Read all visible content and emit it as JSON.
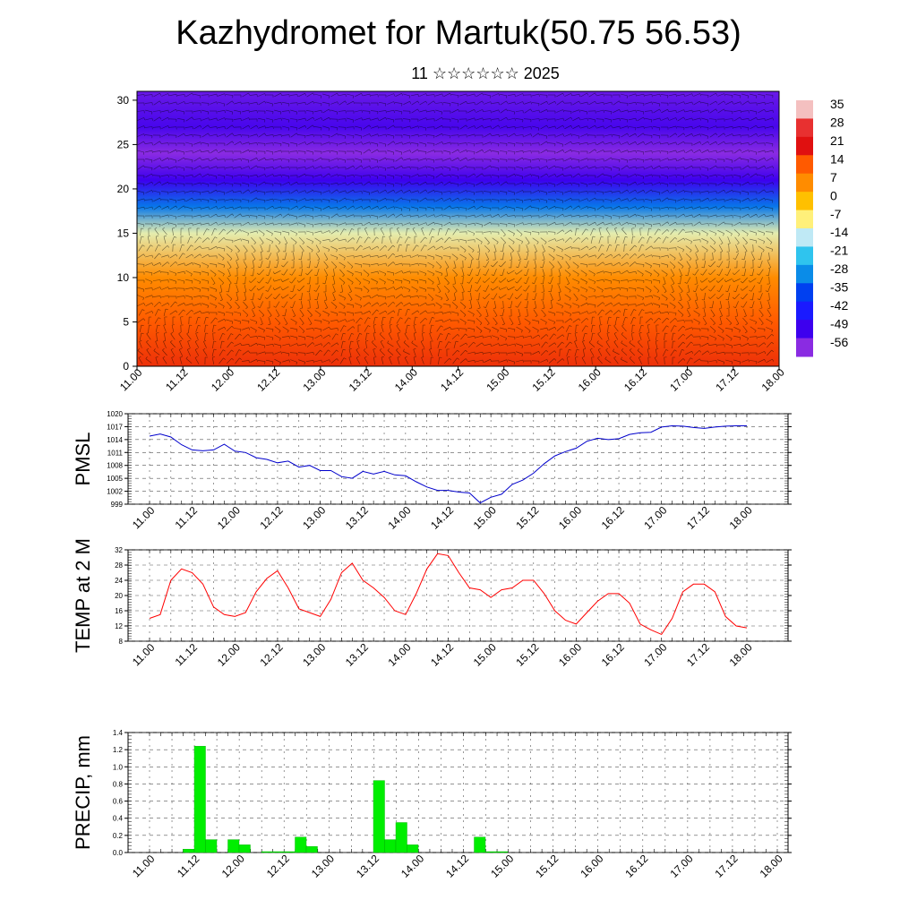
{
  "title": "Kazhydromet for Martuk(50.75 56.53)",
  "subtitle": "11 ☆☆☆☆☆☆ 2025",
  "time_labels": [
    "11.00",
    "11.12",
    "12.00",
    "12.12",
    "13.00",
    "13.12",
    "14.00",
    "14.12",
    "15.00",
    "15.12",
    "16.00",
    "16.12",
    "17.00",
    "17.12",
    "18.00"
  ],
  "colors": {
    "pmsl": "#0000cc",
    "temp": "#ff0000",
    "precip": "#00ee00"
  },
  "chart_data": [
    {
      "type": "heatmap",
      "title": "",
      "ylim": [
        0,
        31
      ],
      "yticks": [
        0,
        5,
        10,
        15,
        20,
        25,
        30
      ],
      "colorbar": {
        "labels": [
          35,
          28,
          21,
          14,
          7,
          0,
          -7,
          -14,
          -21,
          -28,
          -35,
          -42,
          -49,
          -56
        ],
        "colors": [
          "#f4c0c0",
          "#e83030",
          "#e01010",
          "#ff5a00",
          "#ff8c00",
          "#ffc000",
          "#fff07a",
          "#bfe9f5",
          "#2fc4ee",
          "#0a8ce8",
          "#0040f0",
          "#1a1aff",
          "#3d00ee",
          "#8a2be2"
        ]
      },
      "temperature_by_height": [
        {
          "height": 0,
          "temp": 18
        },
        {
          "height": 5,
          "temp": 14
        },
        {
          "height": 10,
          "temp": 7
        },
        {
          "height": 15,
          "temp": -10
        },
        {
          "height": 18,
          "temp": -30
        },
        {
          "height": 21,
          "temp": -49
        },
        {
          "height": 24,
          "temp": -58
        },
        {
          "height": 27,
          "temp": -50
        },
        {
          "height": 31,
          "temp": -53
        }
      ]
    },
    {
      "type": "line",
      "ylabel": "PMSL",
      "ylim": [
        999,
        1020
      ],
      "yticks": [
        999,
        1002,
        1005,
        1008,
        1011,
        1014,
        1017,
        1020
      ],
      "series": [
        {
          "values": [
            1014.8,
            1015.3,
            1014.6,
            1012.8,
            1011.6,
            1011.4,
            1011.6,
            1012.9,
            1011.3,
            1011.0,
            1009.8,
            1009.4,
            1008.6,
            1009.0,
            1007.6,
            1008.0,
            1006.8,
            1006.8,
            1005.4,
            1005.0,
            1006.6,
            1006.0,
            1006.6,
            1005.8,
            1005.6,
            1004.2,
            1003.0,
            1002.2,
            1002.2,
            1001.8,
            1001.6,
            999.3,
            1000.6,
            1001.3,
            1003.6,
            1004.6,
            1006.2,
            1008.4,
            1010.2,
            1011.2,
            1012.0,
            1013.6,
            1014.3,
            1014.0,
            1014.2,
            1015.2,
            1015.6,
            1015.7,
            1016.9,
            1017.2,
            1017.1,
            1016.8,
            1016.6,
            1016.9,
            1017.1,
            1017.2,
            1017.2
          ]
        }
      ]
    },
    {
      "type": "line",
      "ylabel": "TEMP at 2 M",
      "ylim": [
        8,
        32
      ],
      "yticks": [
        8,
        12,
        16,
        20,
        24,
        28,
        32
      ],
      "series": [
        {
          "values": [
            14,
            15,
            24,
            27,
            26,
            23,
            17,
            15,
            14.5,
            15.5,
            21,
            24.5,
            26.5,
            22,
            16.5,
            15.5,
            14.5,
            19,
            26,
            28.5,
            24,
            22,
            19.5,
            16,
            15,
            20.5,
            27,
            31,
            30.5,
            26,
            22,
            21.5,
            19.5,
            21.5,
            22,
            24,
            24,
            20.5,
            16,
            13.5,
            12.5,
            15.5,
            18.5,
            20.5,
            20.5,
            18,
            12.5,
            11,
            9.8,
            14,
            21,
            23,
            23,
            21,
            14.5,
            12,
            11.5
          ]
        }
      ]
    },
    {
      "type": "bar",
      "ylabel": "PRECIP, mm",
      "ylim": [
        0,
        1.4
      ],
      "yticks": [
        "0.0",
        "0.2",
        "0.4",
        "0.6",
        "0.8",
        "1.0",
        "1.2",
        "1.4"
      ],
      "series": [
        {
          "values": [
            0,
            0,
            0,
            0.04,
            1.24,
            0.15,
            0,
            0.15,
            0.09,
            0,
            0.01,
            0.01,
            0.01,
            0.18,
            0.07,
            0,
            0,
            0,
            0,
            0,
            0.84,
            0.15,
            0.35,
            0.09,
            0,
            0,
            0,
            0,
            0,
            0.18,
            0.01,
            0.01,
            0,
            0,
            0,
            0,
            0,
            0,
            0,
            0,
            0,
            0,
            0,
            0,
            0,
            0,
            0,
            0,
            0,
            0,
            0,
            0,
            0,
            0,
            0,
            0,
            0
          ]
        }
      ]
    }
  ]
}
